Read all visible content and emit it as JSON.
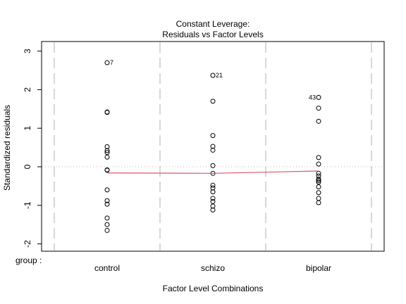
{
  "chart_data": {
    "type": "scatter",
    "title": "Constant Leverage:",
    "subtitle": "Residuals vs Factor Levels",
    "xlabel": "Factor Level Combinations",
    "ylabel": "Standardized residuals",
    "group_label": "group :",
    "categories": [
      "control",
      "schizo",
      "bipolar"
    ],
    "ylim": [
      -2.2,
      3.15
    ],
    "yticks": [
      -2,
      -1,
      0,
      1,
      2,
      3
    ],
    "grid": false,
    "zero_line": true,
    "series": [
      {
        "category": "control",
        "values": [
          2.7,
          1.42,
          1.41,
          0.52,
          0.42,
          0.37,
          0.25,
          -0.08,
          -0.09,
          -0.6,
          -0.88,
          -0.97,
          -1.33,
          -1.5,
          -1.65
        ]
      },
      {
        "category": "schizo",
        "values": [
          2.37,
          1.7,
          0.81,
          0.53,
          0.43,
          0.03,
          -0.17,
          -0.48,
          -0.55,
          -0.65,
          -0.82,
          -0.9,
          -1.02,
          -1.12
        ]
      },
      {
        "category": "bipolar",
        "values": [
          1.8,
          1.52,
          1.18,
          0.24,
          0.07,
          -0.17,
          -0.24,
          -0.32,
          -0.36,
          -0.4,
          -0.52,
          -0.67,
          -0.82,
          -0.93
        ]
      }
    ],
    "smoother": {
      "x": [
        "control",
        "schizo",
        "bipolar"
      ],
      "values": [
        -0.16,
        -0.17,
        -0.11
      ],
      "color": "#df536b"
    },
    "annotations": [
      {
        "category": "control",
        "value": 2.7,
        "label": "7"
      },
      {
        "category": "schizo",
        "value": 2.37,
        "label": "21"
      },
      {
        "category": "bipolar",
        "value": 1.8,
        "label": "43"
      }
    ],
    "colors": {
      "points": "#000000",
      "smoother": "#df536b",
      "zero_line": "#bebebe",
      "dividers": "#bebebe"
    }
  }
}
